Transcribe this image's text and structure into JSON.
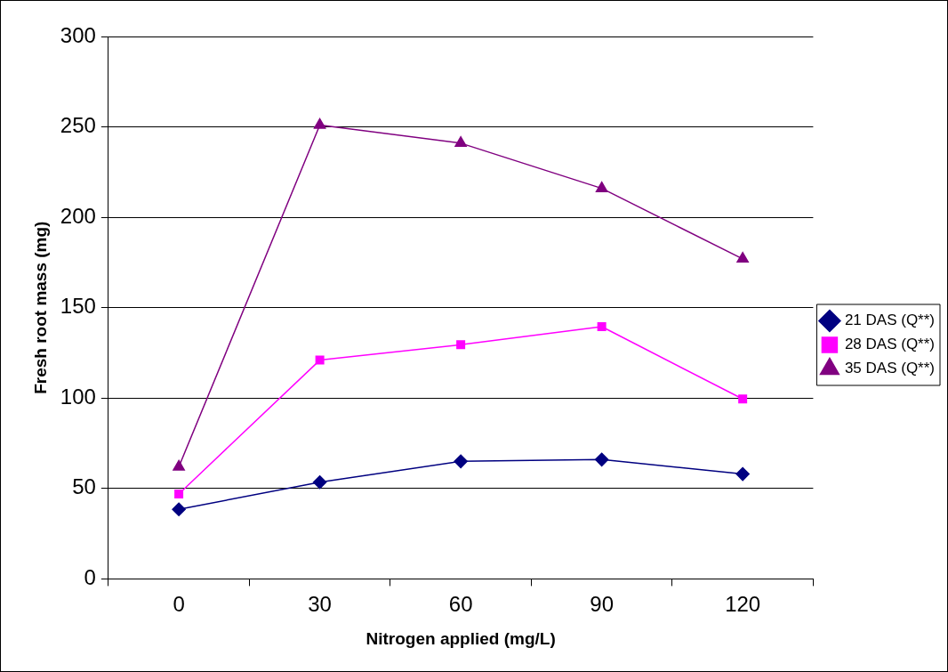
{
  "chart_data": {
    "type": "line",
    "xlabel": "Nitrogen applied (mg/L)",
    "ylabel": "Fresh root mass (mg)",
    "categories": [
      "0",
      "30",
      "60",
      "90",
      "120"
    ],
    "series": [
      {
        "name": "21 DAS (Q**)",
        "color": "#000080",
        "marker": "diamond",
        "values": [
          38.5,
          53.5,
          65,
          66,
          58
        ]
      },
      {
        "name": "28 DAS (Q**)",
        "color": "#ff00ff",
        "marker": "square",
        "values": [
          47,
          121,
          129.5,
          139.5,
          99.5
        ]
      },
      {
        "name": "35 DAS (Q**)",
        "color": "#800080",
        "marker": "triangle",
        "values": [
          62,
          251,
          241,
          216,
          177
        ]
      }
    ],
    "ylim": [
      0,
      300
    ],
    "yticks": [
      0,
      50,
      100,
      150,
      200,
      250,
      300
    ],
    "grid": "y",
    "legend": "right"
  }
}
